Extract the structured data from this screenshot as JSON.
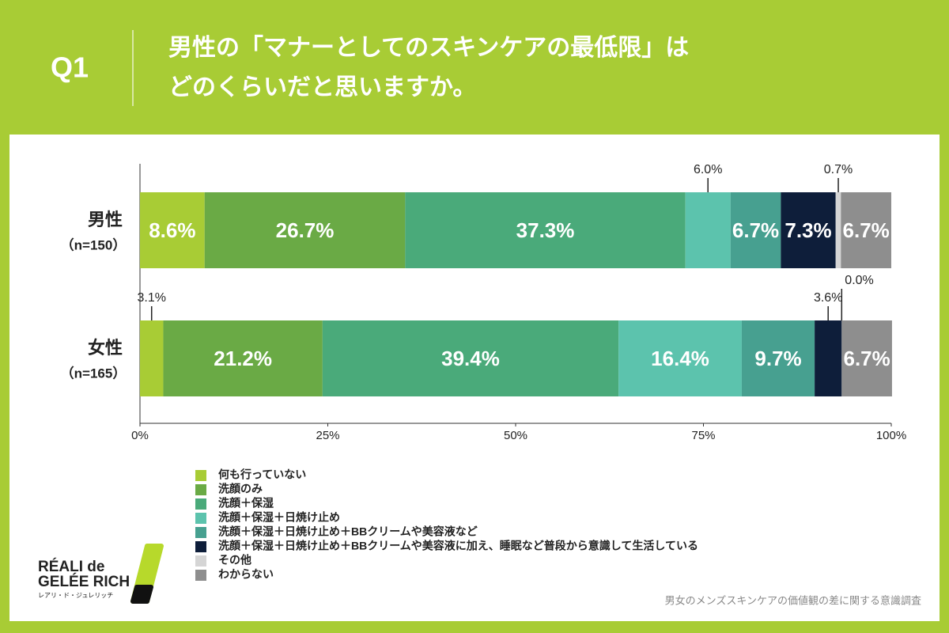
{
  "question": "Q1",
  "chart_data": {
    "type": "stacked-bar-horizontal",
    "title": [
      "男性の「マナーとしてのスキンケアの最低限」は",
      "どのくらいだと思いますか。"
    ],
    "categories": [
      "男性",
      "女性"
    ],
    "category_notes": [
      "（n=150）",
      "（n=165）"
    ],
    "series": [
      {
        "name": "何も行っていない",
        "color": "#a8cc35",
        "values": [
          8.6,
          3.1
        ],
        "value_labels": [
          "8.6%",
          "3.1%"
        ]
      },
      {
        "name": "洗顔のみ",
        "color": "#6aaa45",
        "values": [
          26.7,
          21.2
        ],
        "value_labels": [
          "26.7%",
          "21.2%"
        ]
      },
      {
        "name": "洗顔＋保湿",
        "color": "#4aaa7a",
        "values": [
          37.3,
          39.4
        ],
        "value_labels": [
          "37.3%",
          "39.4%"
        ]
      },
      {
        "name": "洗顔＋保湿＋日焼け止め",
        "color": "#5cc3ad",
        "values": [
          6.0,
          16.4
        ],
        "value_labels": [
          "6.0%",
          "16.4%"
        ]
      },
      {
        "name": "洗顔＋保湿＋日焼け止め＋BBクリームや美容液など",
        "color": "#47a090",
        "values": [
          6.7,
          9.7
        ],
        "value_labels": [
          "6.7%",
          "9.7%"
        ]
      },
      {
        "name": "洗顔＋保湿＋日焼け止め＋BBクリームや美容液に加え、睡眠など普段から意識して生活している",
        "color": "#0e1e3a",
        "values": [
          7.3,
          3.6
        ],
        "value_labels": [
          "7.3%",
          "3.6%"
        ]
      },
      {
        "name": "その他",
        "color": "#d5d5d5",
        "values": [
          0.7,
          0.0
        ],
        "value_labels": [
          "0.7%",
          "0.0%"
        ]
      },
      {
        "name": "わからない",
        "color": "#8e8e8e",
        "values": [
          6.7,
          6.7
        ],
        "value_labels": [
          "6.7%",
          "6.7%"
        ]
      }
    ],
    "xlim": [
      0,
      100
    ],
    "xticks": [
      {
        "value": 0,
        "label": "0%"
      },
      {
        "value": 25,
        "label": "25%"
      },
      {
        "value": 50,
        "label": "50%"
      },
      {
        "value": 75,
        "label": "75%"
      },
      {
        "value": 100,
        "label": "100%"
      }
    ],
    "grid": false,
    "source": "男女のメンズスキンケアの価値観の差に関する意識調査"
  },
  "brand": {
    "name_line1": "RÉALI de",
    "name_line2": "GELÉE RICH",
    "kana": "レアリ・ド・ジュレリッチ"
  }
}
